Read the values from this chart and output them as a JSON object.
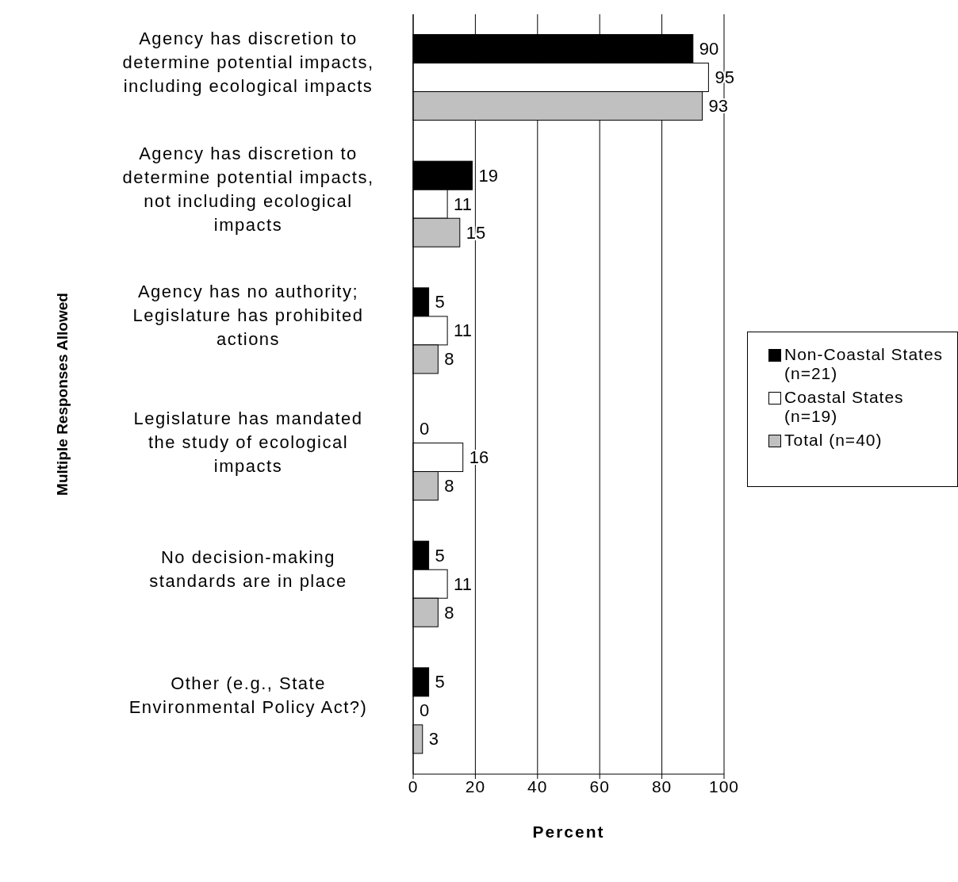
{
  "chart_data": {
    "type": "bar",
    "orientation": "horizontal",
    "xlabel": "Percent",
    "ylabel": "Multiple Responses Allowed",
    "categories": [
      "Agency has discretion to determine potential impacts, including ecological impacts",
      "Agency has discretion to determine potential impacts, not including ecological impacts",
      "Agency has no authority; Legislature has prohibited actions",
      "Legislature has mandated the study of ecological impacts",
      "No decision-making standards are in place",
      "Other (e.g., State Environmental Policy Act?)"
    ],
    "series": [
      {
        "name": "Non-Coastal States (n=21)",
        "color": "#000000",
        "values": [
          90,
          19,
          5,
          0,
          5,
          5
        ]
      },
      {
        "name": "Coastal States (n=19)",
        "color": "#ffffff",
        "values": [
          95,
          11,
          11,
          16,
          11,
          0
        ]
      },
      {
        "name": "Total (n=40)",
        "color": "#c0c0c0",
        "values": [
          93,
          15,
          8,
          8,
          8,
          3
        ]
      }
    ],
    "xlim": [
      0,
      100
    ],
    "xticks": [
      0,
      20,
      40,
      60,
      80,
      100
    ],
    "grid": "x",
    "legend": "right",
    "data_labels": true
  }
}
